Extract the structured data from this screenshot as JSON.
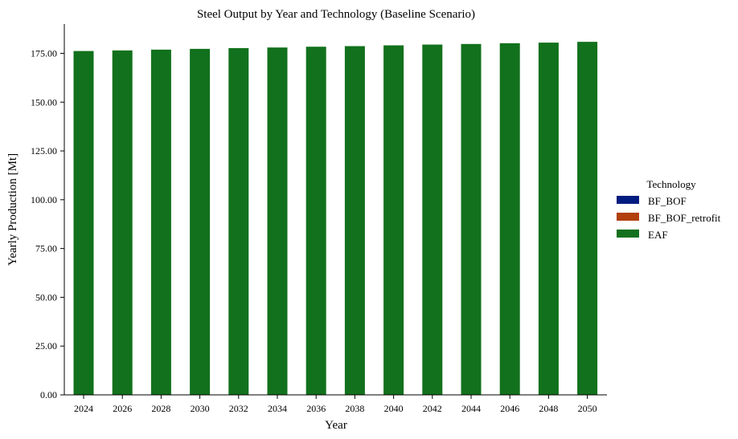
{
  "chart_data": {
    "type": "bar",
    "stacked": true,
    "title": "Steel Output by Year and Technology (Baseline Scenario)",
    "xlabel": "Year",
    "ylabel": "Yearly Production [Mt]",
    "ylim": [
      0,
      190
    ],
    "yticks": [
      "0.00",
      "25.00",
      "50.00",
      "75.00",
      "100.00",
      "125.00",
      "150.00",
      "175.00"
    ],
    "ytick_values": [
      0,
      25,
      50,
      75,
      100,
      125,
      150,
      175
    ],
    "categories": [
      "2024",
      "2026",
      "2028",
      "2030",
      "2032",
      "2034",
      "2036",
      "2038",
      "2040",
      "2042",
      "2044",
      "2046",
      "2048",
      "2050"
    ],
    "legend_title": "Technology",
    "legend_position": "right",
    "grid": false,
    "series": [
      {
        "name": "BF_BOF",
        "color": "#001c7f",
        "values": [
          0,
          0,
          0,
          0,
          0,
          0,
          0,
          0,
          0,
          0,
          0,
          0,
          0,
          0
        ]
      },
      {
        "name": "BF_BOF_retrofit",
        "color": "#b1400d",
        "values": [
          0,
          0,
          0,
          0,
          0,
          0,
          0,
          0,
          0,
          0,
          0,
          0,
          0,
          0
        ]
      },
      {
        "name": "EAF",
        "color": "#12711c",
        "values": [
          176.2,
          176.5,
          176.9,
          177.3,
          177.7,
          178.0,
          178.4,
          178.7,
          179.1,
          179.5,
          179.8,
          180.2,
          180.5,
          180.9
        ]
      }
    ]
  }
}
